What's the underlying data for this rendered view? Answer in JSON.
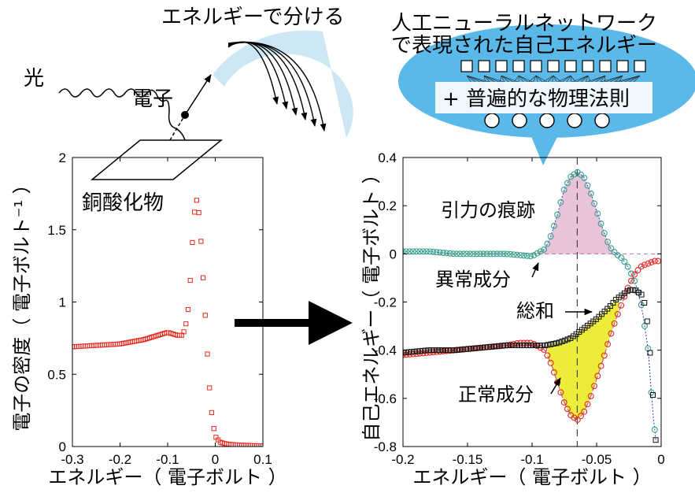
{
  "header": {
    "energy_split": "エネルギーで分ける",
    "nn_line1": "人工ニューラルネットワーク",
    "nn_line2": "で表現された自己エネルギー",
    "physics_law": "+ 普遍的な物理法則"
  },
  "schematic": {
    "light": "光",
    "electron": "電子",
    "material": "銅酸化物"
  },
  "colors": {
    "red": "#e8281e",
    "teal": "#33a58a",
    "black": "#111111",
    "pink_fill": "#e9c3d8",
    "yellow_fill": "#ecec3a",
    "bubble": "#5ab9e8",
    "fan": "#cde7f5",
    "dash_purple": "#a04aa8",
    "dot_blue": "#2a3bbb"
  },
  "chart_data": [
    {
      "type": "scatter",
      "xlabel": "エネルギー（ 電子ボルト ）",
      "ylabel": "電子の密度（ 電子ボルト⁻¹ ）",
      "xlim": [
        -0.3,
        0.1
      ],
      "ylim": [
        0,
        2
      ],
      "xticks": [
        "-0.3",
        "-0.2",
        "-0.1",
        "0",
        "0.1"
      ],
      "yticks": [
        "0",
        "0.5",
        "1",
        "1.5",
        "2"
      ],
      "series": [
        {
          "color": "#e8281e",
          "marker": "square",
          "x": [
            -0.3,
            -0.25,
            -0.2,
            -0.15,
            -0.12,
            -0.1,
            -0.09,
            -0.08,
            -0.07,
            -0.065,
            -0.06,
            -0.055,
            -0.05,
            -0.045,
            -0.04,
            -0.035,
            -0.03,
            -0.025,
            -0.02,
            -0.015,
            -0.01,
            -0.005,
            0.0,
            0.01,
            0.02,
            0.03,
            0.05,
            0.07,
            0.09,
            0.1
          ],
          "y": [
            0.69,
            0.7,
            0.71,
            0.74,
            0.77,
            0.79,
            0.78,
            0.77,
            0.77,
            0.8,
            0.87,
            1.0,
            1.3,
            1.58,
            1.72,
            1.64,
            1.42,
            1.14,
            0.85,
            0.55,
            0.31,
            0.16,
            0.07,
            0.03,
            0.02,
            0.015,
            0.01,
            0.008,
            0.005,
            0.004
          ]
        }
      ]
    },
    {
      "type": "scatter",
      "xlabel": "エネルギー（ 電子ボルト ）",
      "ylabel": "自己エネルギー（ 電子ボルト ）",
      "xlim": [
        -0.2,
        0
      ],
      "ylim": [
        -0.8,
        0.4
      ],
      "xticks": [
        "-0.2",
        "-0.15",
        "-0.1",
        "-0.05",
        "0"
      ],
      "yticks": [
        "-0.8",
        "-0.6",
        "-0.4",
        "-0.2",
        "0",
        "0.2",
        "0.4"
      ],
      "annotations": [
        "引力の痕跡",
        "異常成分",
        "総和",
        "正常成分"
      ],
      "series": [
        {
          "name": "異常成分",
          "color": "#33a58a",
          "marker": "circle",
          "x": [
            -0.2,
            -0.18,
            -0.16,
            -0.14,
            -0.12,
            -0.11,
            -0.1,
            -0.09,
            -0.085,
            -0.08,
            -0.075,
            -0.07,
            -0.065,
            -0.06,
            -0.055,
            -0.05,
            -0.045,
            -0.04,
            -0.035,
            -0.03,
            -0.025,
            -0.02,
            -0.015,
            -0.01,
            -0.008,
            -0.006,
            -0.004
          ],
          "y": [
            0.01,
            0.01,
            0.0,
            0.0,
            0.0,
            -0.005,
            -0.01,
            0.02,
            0.08,
            0.17,
            0.27,
            0.32,
            0.34,
            0.32,
            0.26,
            0.18,
            0.1,
            0.03,
            0.0,
            -0.02,
            -0.06,
            -0.12,
            -0.22,
            -0.4,
            -0.55,
            -0.68,
            -0.78
          ]
        },
        {
          "name": "正常成分",
          "color": "#e8281e",
          "marker": "circle",
          "x": [
            -0.2,
            -0.18,
            -0.16,
            -0.14,
            -0.12,
            -0.11,
            -0.1,
            -0.09,
            -0.085,
            -0.08,
            -0.075,
            -0.07,
            -0.065,
            -0.06,
            -0.055,
            -0.05,
            -0.045,
            -0.04,
            -0.035,
            -0.03,
            -0.025,
            -0.02,
            -0.015,
            -0.01,
            -0.005,
            -0.002
          ],
          "y": [
            -0.42,
            -0.41,
            -0.4,
            -0.39,
            -0.38,
            -0.37,
            -0.37,
            -0.4,
            -0.46,
            -0.54,
            -0.62,
            -0.67,
            -0.69,
            -0.66,
            -0.6,
            -0.52,
            -0.44,
            -0.35,
            -0.27,
            -0.2,
            -0.13,
            -0.08,
            -0.05,
            -0.04,
            -0.03,
            -0.03
          ]
        },
        {
          "name": "総和",
          "color": "#111111",
          "marker": "square",
          "x": [
            -0.2,
            -0.18,
            -0.16,
            -0.14,
            -0.12,
            -0.1,
            -0.09,
            -0.08,
            -0.07,
            -0.065,
            -0.06,
            -0.05,
            -0.04,
            -0.035,
            -0.03,
            -0.025,
            -0.02,
            -0.015,
            -0.012,
            -0.01,
            -0.008,
            -0.006,
            -0.004
          ],
          "y": [
            -0.41,
            -0.4,
            -0.4,
            -0.39,
            -0.38,
            -0.38,
            -0.38,
            -0.37,
            -0.35,
            -0.33,
            -0.31,
            -0.27,
            -0.22,
            -0.19,
            -0.17,
            -0.15,
            -0.15,
            -0.17,
            -0.22,
            -0.32,
            -0.45,
            -0.62,
            -0.79
          ]
        }
      ]
    }
  ]
}
